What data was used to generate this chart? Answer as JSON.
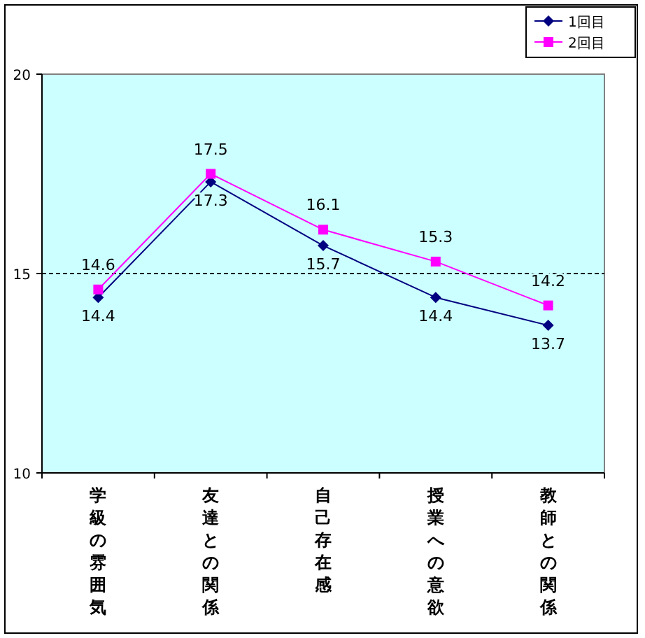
{
  "chart_data": {
    "type": "line",
    "categories": [
      "学級の雰囲気",
      "友達との関係",
      "自己存在感",
      "授業への意欲",
      "教師との関係"
    ],
    "series": [
      {
        "name": "1回目",
        "color": "#000080",
        "marker": "diamond",
        "values": [
          14.4,
          17.3,
          15.7,
          14.4,
          13.7
        ]
      },
      {
        "name": "2回目",
        "color": "#ff00ff",
        "marker": "square",
        "values": [
          14.6,
          17.5,
          16.1,
          15.3,
          14.2
        ]
      }
    ],
    "ylim": [
      10,
      20
    ],
    "yticks": [
      10,
      15,
      20
    ],
    "grid": false,
    "legend": "top right",
    "data_labels": true,
    "ref_lines": [
      {
        "axis": "y",
        "value": 15,
        "color": "#000000",
        "line_style": "dashed"
      }
    ]
  }
}
